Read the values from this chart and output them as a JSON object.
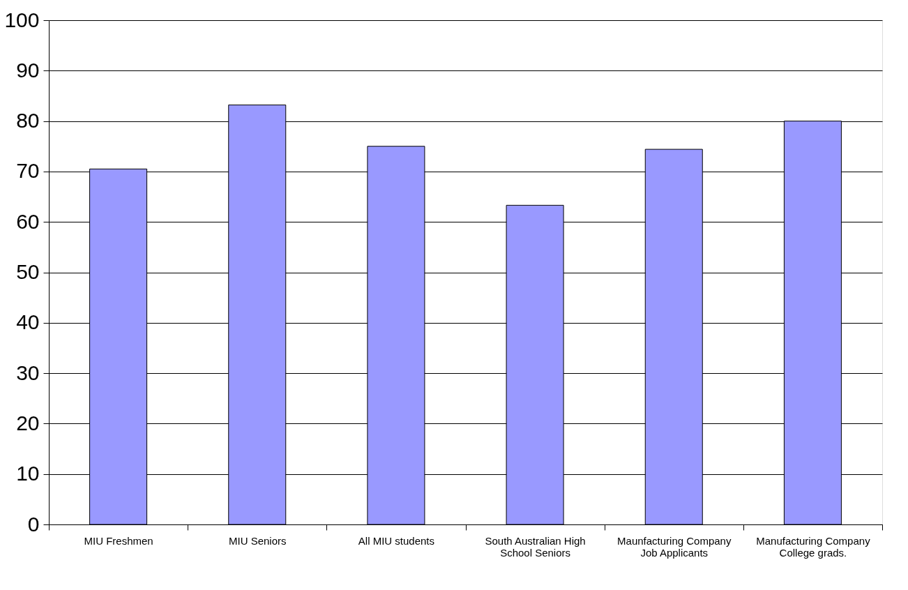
{
  "chart_data": {
    "type": "bar",
    "categories": [
      "MIU Freshmen",
      "MIU Seniors",
      "All MIU students",
      "South Australian High School Seniors",
      "Maunfacturing Company Job Applicants",
      "Manufacturing Company College grads."
    ],
    "values": [
      70.5,
      83.2,
      75,
      63.3,
      74.4,
      80
    ],
    "color": "#9999ff",
    "ylim": [
      0,
      100
    ],
    "yticks": [
      0,
      10,
      20,
      30,
      40,
      50,
      60,
      70,
      80,
      90,
      100
    ],
    "grid": "y"
  }
}
